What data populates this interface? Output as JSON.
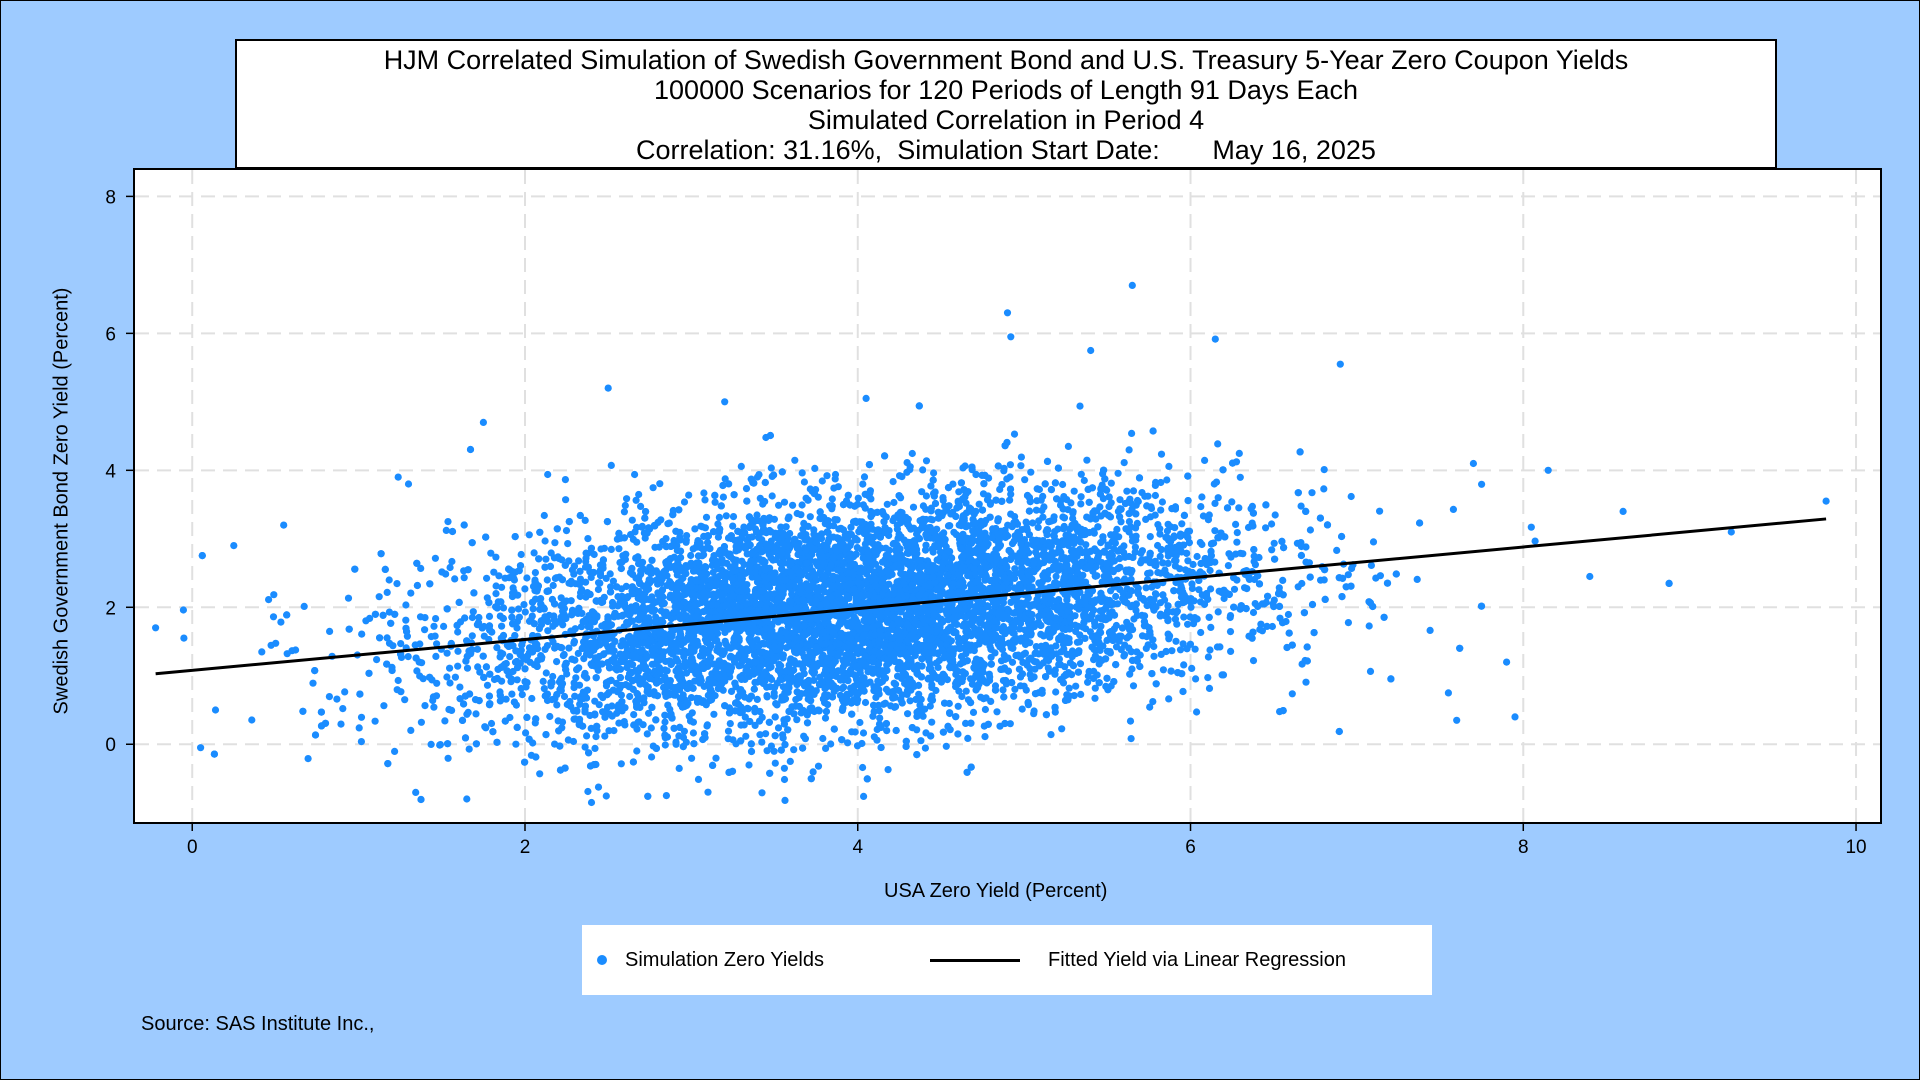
{
  "title_lines": [
    "HJM Correlated Simulation of Swedish Government Bond and U.S. Treasury 5-Year Zero Coupon Yields",
    "100000 Scenarios for 120 Periods of Length 91 Days Each",
    "Simulated Correlation in Period 4",
    "Correlation: 31.16%,  Simulation Start Date:       May 16, 2025"
  ],
  "legend": {
    "scatter_label": "Simulation Zero Yields",
    "line_label": "Fitted Yield via Linear Regression"
  },
  "source": "Source: SAS Institute Inc.,",
  "colors": {
    "background": "#9ecbff",
    "points": "#1a8cff",
    "fit_line": "#000000",
    "grid": "#e0e0e0"
  },
  "chart_data": {
    "type": "scatter",
    "xlabel": "USA Zero Yield (Percent)",
    "ylabel": "Swedish Government Bond Zero Yield (Percent)",
    "xlim": [
      -0.35,
      10.15
    ],
    "ylim": [
      -1.15,
      8.4
    ],
    "xticks": [
      0,
      2,
      4,
      6,
      8,
      10
    ],
    "yticks": [
      0,
      2,
      4,
      6,
      8
    ],
    "grid": true,
    "legend_position": "bottom",
    "series": [
      {
        "name": "Simulation Zero Yields",
        "kind": "scatter",
        "cloud": {
          "n_points": 100000,
          "x_mean": 3.95,
          "x_sd": 1.15,
          "y_mean": 1.95,
          "y_sd": 0.85,
          "correlation": 0.3116
        },
        "notable_points": [
          [
            -0.22,
            1.7
          ],
          [
            -0.05,
            1.55
          ],
          [
            0.05,
            -0.05
          ],
          [
            0.25,
            2.9
          ],
          [
            0.14,
            0.5
          ],
          [
            0.55,
            3.2
          ],
          [
            5.65,
            6.7
          ],
          [
            4.9,
            6.3
          ],
          [
            4.92,
            5.95
          ],
          [
            6.9,
            5.55
          ],
          [
            5.4,
            5.75
          ],
          [
            9.82,
            3.55
          ],
          [
            9.25,
            3.1
          ],
          [
            8.6,
            3.4
          ],
          [
            8.15,
            4.0
          ],
          [
            8.4,
            2.45
          ],
          [
            7.95,
            0.4
          ],
          [
            7.6,
            0.35
          ],
          [
            7.55,
            0.75
          ],
          [
            7.9,
            1.2
          ],
          [
            1.65,
            -0.8
          ],
          [
            2.4,
            -0.85
          ],
          [
            2.85,
            -0.75
          ],
          [
            3.1,
            -0.7
          ],
          [
            1.3,
            3.8
          ],
          [
            1.75,
            4.7
          ],
          [
            2.5,
            5.2
          ],
          [
            3.2,
            5.0
          ],
          [
            4.05,
            5.05
          ],
          [
            7.7,
            4.1
          ]
        ]
      },
      {
        "name": "Fitted Yield via Linear Regression",
        "kind": "line",
        "x": [
          -0.22,
          9.82
        ],
        "y": [
          1.03,
          3.29
        ]
      }
    ]
  }
}
